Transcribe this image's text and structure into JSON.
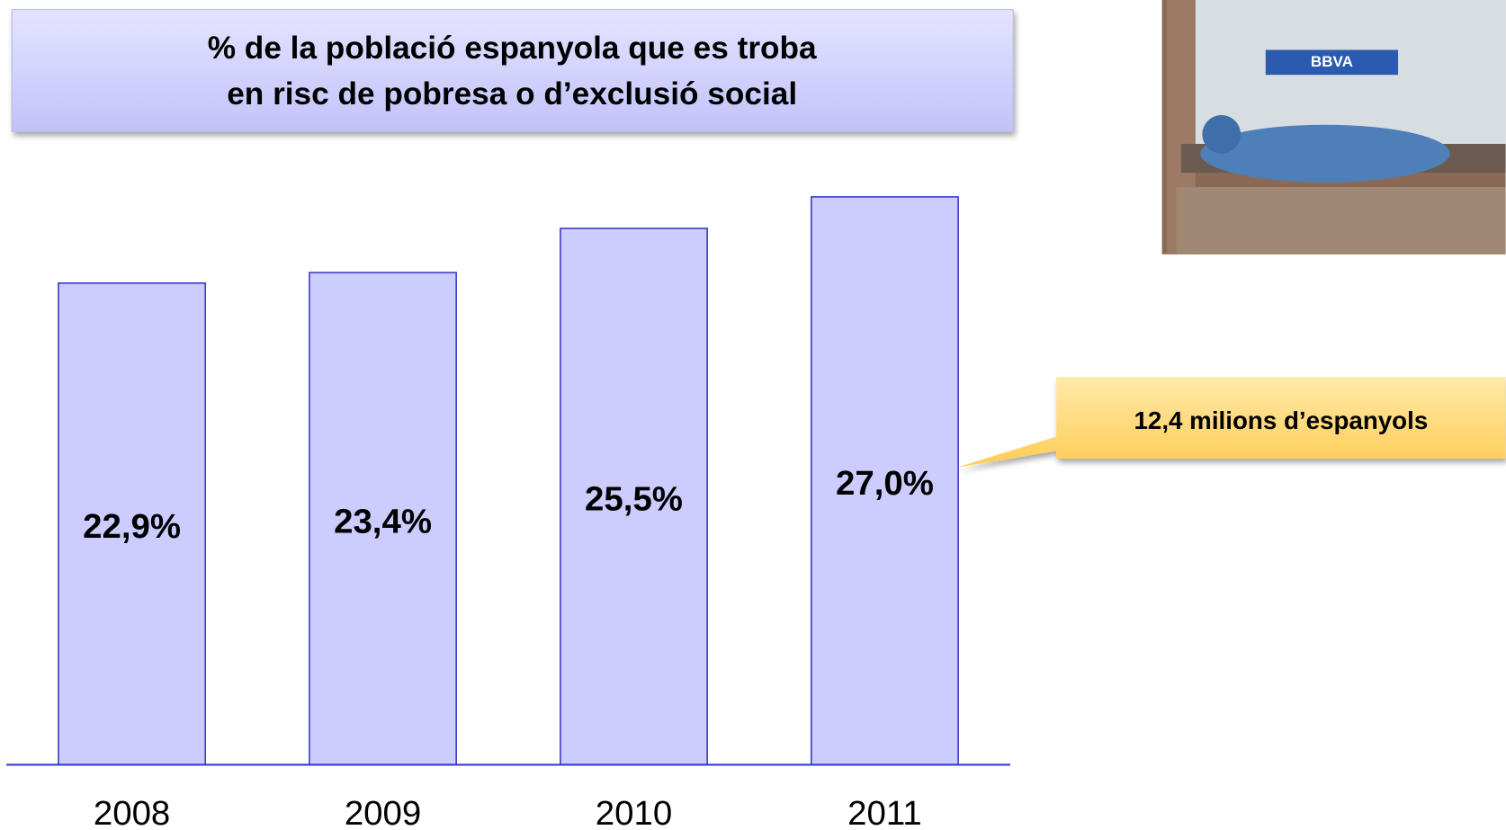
{
  "chart_data": {
    "type": "bar",
    "title": [
      "% de la població espanyola que es troba",
      "en risc de pobresa o d’exclusió social"
    ],
    "categories": [
      "2008",
      "2009",
      "2010",
      "2011"
    ],
    "values": [
      22.9,
      23.4,
      25.5,
      27.0
    ],
    "value_labels": [
      "22,9%",
      "23,4%",
      "25,5%",
      "27,0%"
    ],
    "color": "#ccccff",
    "ylim": [
      0,
      30
    ],
    "annotation": "12,4 milions d’espanyols"
  },
  "photo": {
    "sign": "BBVA"
  }
}
